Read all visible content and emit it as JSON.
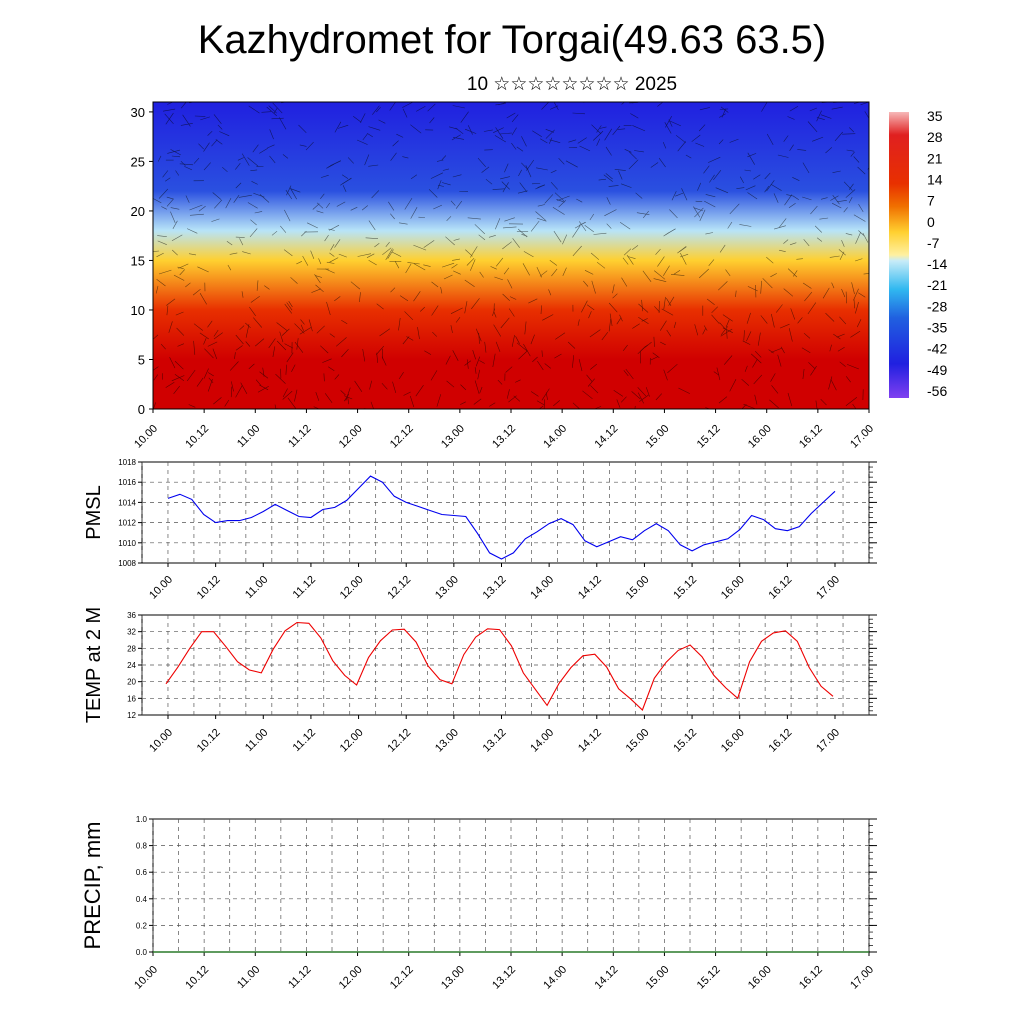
{
  "header": {
    "title": "Kazhydromet for Torgai(49.63 63.5)",
    "subtitle": "10 ☆☆☆☆☆☆☆☆ 2025"
  },
  "chart_data": [
    {
      "type": "heatmap",
      "title": "Kazhydromet for Torgai(49.63 63.5)",
      "subtitle": "10 ☆☆☆☆☆☆☆☆ 2025",
      "x_tick_labels": [
        "10.00",
        "10.12",
        "11.00",
        "11.12",
        "12.00",
        "12.12",
        "13.00",
        "13.12",
        "14.00",
        "14.12",
        "15.00",
        "15.12",
        "16.00",
        "16.12",
        "17.00"
      ],
      "y_ticks": [
        0,
        5,
        10,
        15,
        20,
        25,
        30
      ],
      "ylim": [
        0,
        31
      ],
      "colorbar_labels": [
        "35",
        "28",
        "21",
        "14",
        "7",
        "0",
        "-7",
        "-14",
        "-21",
        "-28",
        "-35",
        "-42",
        "-49",
        "-56"
      ],
      "colors": {
        "warm": "#d00000",
        "cold": "#1010d0",
        "neutral": "#fff080"
      },
      "layers": [
        {
          "y": 0,
          "value": 32
        },
        {
          "y": 5,
          "value": 28
        },
        {
          "y": 10,
          "value": 16
        },
        {
          "y": 15,
          "value": 0
        },
        {
          "y": 18,
          "value": -20
        },
        {
          "y": 22,
          "value": -45
        },
        {
          "y": 31,
          "value": -56
        }
      ]
    },
    {
      "type": "line",
      "ylabel": "PMSL",
      "ylim": [
        1008,
        1018
      ],
      "y_ticks": [
        1008,
        1010,
        1012,
        1014,
        1016,
        1018
      ],
      "x_tick_labels": [
        "10.00",
        "10.12",
        "11.00",
        "11.12",
        "12.00",
        "12.12",
        "13.00",
        "13.12",
        "14.00",
        "14.12",
        "15.00",
        "15.12",
        "16.00",
        "16.12",
        "17.00"
      ],
      "color": "#0000ee",
      "values": [
        1014.4,
        1014.8,
        1014.3,
        1012.8,
        1012.0,
        1012.2,
        1012.2,
        1012.5,
        1013.1,
        1013.8,
        1013.2,
        1012.6,
        1012.5,
        1013.3,
        1013.5,
        1014.2,
        1015.4,
        1016.6,
        1016.0,
        1014.6,
        1014.0,
        1013.6,
        1013.2,
        1012.8,
        1012.7,
        1012.6,
        1010.9,
        1009.0,
        1008.4,
        1009.0,
        1010.4,
        1011.1,
        1011.9,
        1012.4,
        1011.8,
        1010.2,
        1009.6,
        1010.1,
        1010.6,
        1010.3,
        1011.2,
        1011.9,
        1011.2,
        1009.8,
        1009.2,
        1009.8,
        1010.1,
        1010.4,
        1011.3,
        1012.7,
        1012.3,
        1011.4,
        1011.2,
        1011.6,
        1012.9,
        1014.0,
        1015.1
      ]
    },
    {
      "type": "line",
      "ylabel": "TEMP at 2 M",
      "ylim": [
        12,
        36
      ],
      "y_ticks": [
        12,
        16,
        20,
        24,
        28,
        32,
        36
      ],
      "x_tick_labels": [
        "10.00",
        "10.12",
        "11.00",
        "11.12",
        "12.00",
        "12.12",
        "13.00",
        "13.12",
        "14.00",
        "14.12",
        "15.00",
        "15.12",
        "16.00",
        "16.12",
        "17.00"
      ],
      "color": "#ee0000",
      "values": [
        19.5,
        23.5,
        28,
        32,
        32,
        28.5,
        24.8,
        22.8,
        22.1,
        27.8,
        32.2,
        34.2,
        34,
        30.5,
        25,
        21.5,
        19.2,
        25.8,
        29.8,
        32.4,
        32.6,
        29.5,
        23.8,
        20.5,
        19.5,
        26.5,
        30.7,
        32.7,
        32.5,
        28.6,
        22.1,
        18.2,
        14.3,
        19.6,
        23.4,
        26.2,
        26.6,
        23.5,
        18.3,
        15.9,
        13.2,
        20.8,
        24.7,
        27.5,
        28.8,
        26,
        21.5,
        18.5,
        16,
        24.8,
        29.7,
        31.7,
        32.2,
        29.7,
        23.4,
        18.9,
        16.5
      ]
    },
    {
      "type": "bar",
      "ylabel": "PRECIP, mm",
      "ylim": [
        0,
        1
      ],
      "y_tick_labels": [
        "0.0",
        "0.2",
        "0.4",
        "0.6",
        "0.8",
        "1.0"
      ],
      "x_tick_labels": [
        "10.00",
        "10.12",
        "11.00",
        "11.12",
        "12.00",
        "12.12",
        "13.00",
        "13.12",
        "14.00",
        "14.12",
        "15.00",
        "15.12",
        "16.00",
        "16.12",
        "17.00"
      ],
      "values": [
        0,
        0,
        0,
        0,
        0,
        0,
        0,
        0,
        0,
        0,
        0,
        0,
        0,
        0,
        0
      ]
    }
  ]
}
